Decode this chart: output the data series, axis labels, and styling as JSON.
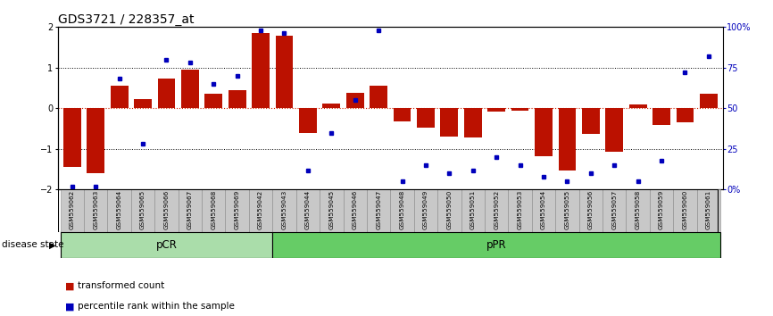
{
  "title": "GDS3721 / 228357_at",
  "samples": [
    "GSM559062",
    "GSM559063",
    "GSM559064",
    "GSM559065",
    "GSM559066",
    "GSM559067",
    "GSM559068",
    "GSM559069",
    "GSM559042",
    "GSM559043",
    "GSM559044",
    "GSM559045",
    "GSM559046",
    "GSM559047",
    "GSM559048",
    "GSM559049",
    "GSM559050",
    "GSM559051",
    "GSM559052",
    "GSM559053",
    "GSM559054",
    "GSM559055",
    "GSM559056",
    "GSM559057",
    "GSM559058",
    "GSM559059",
    "GSM559060",
    "GSM559061"
  ],
  "bar_values": [
    -1.45,
    -1.6,
    0.55,
    0.22,
    0.72,
    0.95,
    0.35,
    0.45,
    1.85,
    1.78,
    -0.6,
    0.12,
    0.38,
    0.55,
    -0.32,
    -0.48,
    -0.7,
    -0.72,
    -0.08,
    -0.05,
    -1.18,
    -1.52,
    -0.62,
    -1.08,
    0.1,
    -0.42,
    -0.35,
    0.35
  ],
  "percentile_values": [
    2,
    2,
    68,
    28,
    80,
    78,
    65,
    70,
    98,
    96,
    12,
    35,
    55,
    98,
    5,
    15,
    10,
    12,
    20,
    15,
    8,
    5,
    10,
    15,
    5,
    18,
    72,
    82
  ],
  "pcr_count": 9,
  "ylim": [
    -2,
    2
  ],
  "yticks": [
    -2,
    -1,
    0,
    1,
    2
  ],
  "right_yticks": [
    0,
    25,
    50,
    75,
    100
  ],
  "right_yticklabels": [
    "0%",
    "25",
    "50",
    "75",
    "100%"
  ],
  "bar_color": "#bb1100",
  "dot_color": "#0000bb",
  "zero_line_color": "#cc2200",
  "background_color": "#ffffff",
  "label_disease": "disease state",
  "legend_bar": "transformed count",
  "legend_dot": "percentile rank within the sample",
  "pcr_color": "#aaddaa",
  "ppr_color": "#66cc66",
  "label_bg_color": "#cccccc",
  "title_fontsize": 10,
  "axis_fontsize": 7,
  "tick_fontsize": 7
}
